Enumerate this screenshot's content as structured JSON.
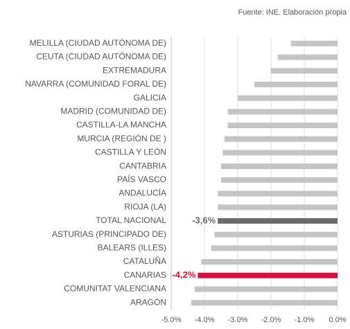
{
  "chart_data": {
    "type": "bar",
    "orientation": "horizontal",
    "source": "Fuente: INE.  Elaboración propia",
    "categories": [
      "MELILLA (CIUDAD AUTÓNOMA DE)",
      "CEUTA (CIUDAD AUTÓNOMA DE)",
      "EXTREMADURA",
      "NAVARRA (COMUNIDAD FORAL DE)",
      "GALICIA",
      "MADRID (COMUNIDAD DE)",
      "CASTILLA-LA MANCHA",
      "MURCIA (REGIÓN DE )",
      "CASTILLA Y LEÓN",
      "CANTABRIA",
      "PAÍS VASCO",
      "ANDALUCÍA",
      "RIOJA (LA)",
      "TOTAL NACIONAL",
      "ASTURIAS (PRINCIPADO DE)",
      "BALEARS (ILLES)",
      "CATALUÑA",
      "CANARIAS",
      "COMUNITAT VALENCIANA",
      "ARAGÓN"
    ],
    "values": [
      -1.4,
      -1.8,
      -2.0,
      -2.5,
      -3.0,
      -3.3,
      -3.3,
      -3.4,
      -3.45,
      -3.5,
      -3.5,
      -3.6,
      -3.6,
      -3.6,
      -3.7,
      -3.8,
      -4.1,
      -4.2,
      -4.3,
      -4.4
    ],
    "value_labels": [
      null,
      null,
      null,
      null,
      null,
      null,
      null,
      null,
      null,
      null,
      null,
      null,
      null,
      "-3,6%",
      null,
      null,
      null,
      "-4,2%",
      null,
      null
    ],
    "colors": [
      "#c4c4c4",
      "#c4c4c4",
      "#c4c4c4",
      "#c4c4c4",
      "#c4c4c4",
      "#c4c4c4",
      "#c4c4c4",
      "#c4c4c4",
      "#c4c4c4",
      "#c4c4c4",
      "#c4c4c4",
      "#c4c4c4",
      "#c4c4c4",
      "#6b6b6b",
      "#c4c4c4",
      "#c4c4c4",
      "#c4c4c4",
      "#d4103c",
      "#c4c4c4",
      "#c4c4c4"
    ],
    "xlim": [
      -5,
      0
    ],
    "xticks": [
      {
        "value": -5,
        "label": "-5.0%"
      },
      {
        "value": -4,
        "label": "-4.0%"
      },
      {
        "value": -3,
        "label": "-3.0%"
      },
      {
        "value": -2,
        "label": "-2.0%"
      },
      {
        "value": -1,
        "label": "-1.0%"
      },
      {
        "value": 0,
        "label": "0.0%"
      }
    ],
    "grid": true
  }
}
